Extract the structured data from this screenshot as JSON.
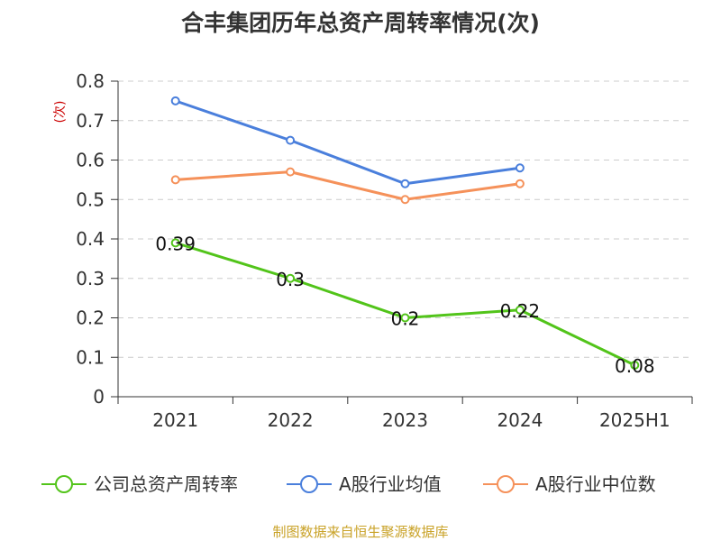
{
  "chart_data": {
    "type": "line",
    "title": "合丰集团历年总资产周转率情况(次)",
    "ylabel": "(次)",
    "xlabel": "",
    "categories": [
      "2021",
      "2022",
      "2023",
      "2024",
      "2025H1"
    ],
    "ylim": [
      0,
      0.8
    ],
    "yticks": [
      0,
      0.1,
      0.2,
      0.3,
      0.4,
      0.5,
      0.6,
      0.7,
      0.8
    ],
    "ytick_labels": [
      "0",
      "0.1",
      "0.2",
      "0.3",
      "0.4",
      "0.5",
      "0.6",
      "0.7",
      "0.8"
    ],
    "grid": true,
    "legend_position": "bottom",
    "series": [
      {
        "name": "公司总资产周转率",
        "color": "#52c41a",
        "values": [
          0.39,
          0.3,
          0.2,
          0.22,
          0.08
        ],
        "labels": [
          "0.39",
          "0.3",
          "0.2",
          "0.22",
          "0.08"
        ]
      },
      {
        "name": "A股行业均值",
        "color": "#4a7fdc",
        "values": [
          0.75,
          0.65,
          0.54,
          0.58,
          null
        ],
        "labels": null
      },
      {
        "name": "A股行业中位数",
        "color": "#f5915a",
        "values": [
          0.55,
          0.57,
          0.5,
          0.54,
          null
        ],
        "labels": null
      }
    ]
  },
  "footer": {
    "source": "制图数据来自恒生聚源数据库"
  }
}
